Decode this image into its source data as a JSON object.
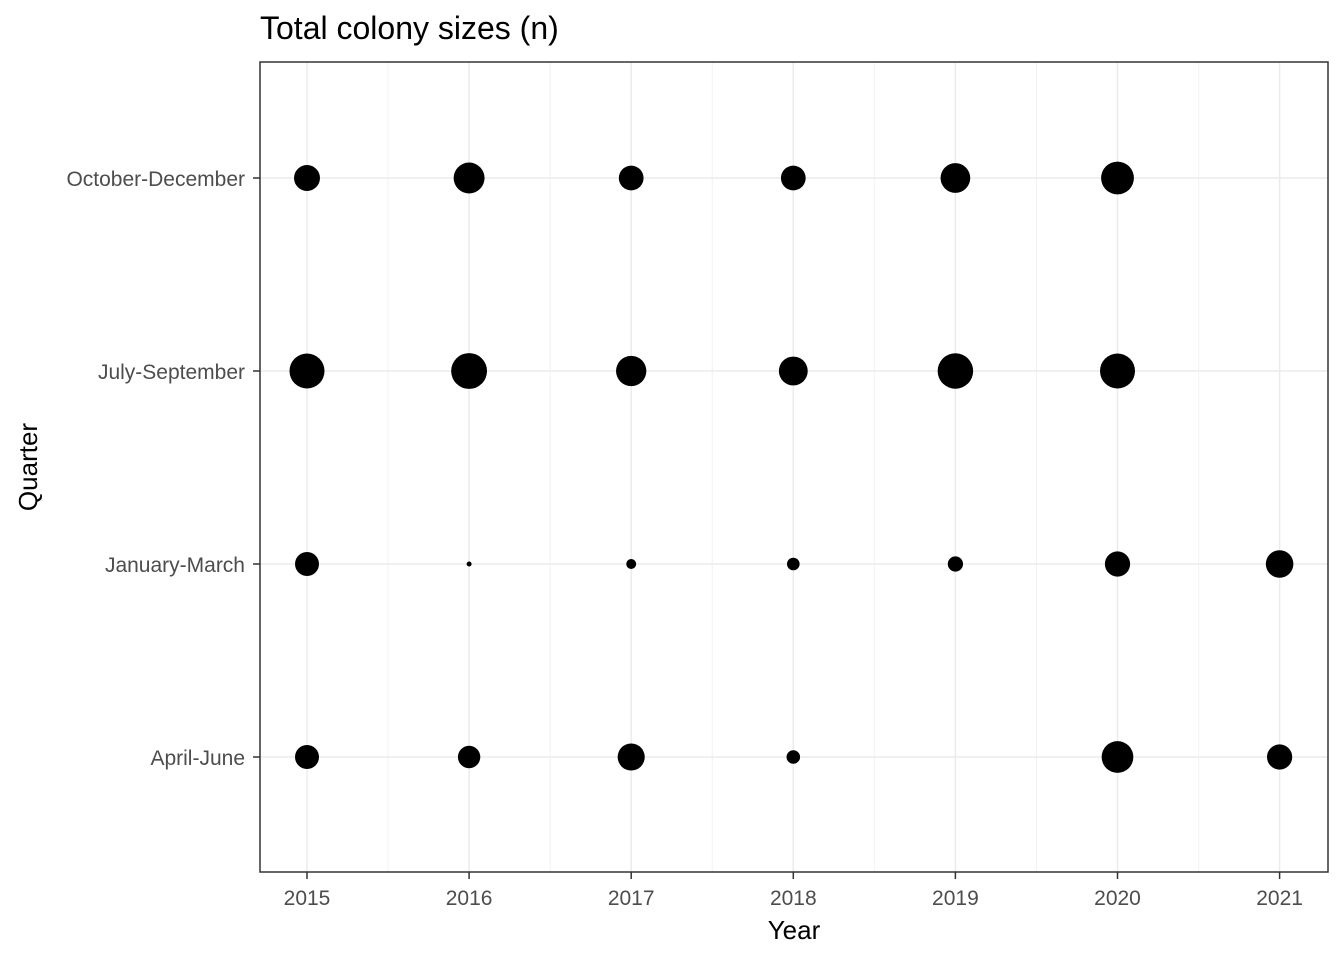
{
  "chart_data": {
    "type": "scatter",
    "title": "Total colony sizes (n)",
    "xlabel": "Year",
    "ylabel": "Quarter",
    "x_categories": [
      "2015",
      "2016",
      "2017",
      "2018",
      "2019",
      "2020",
      "2021"
    ],
    "y_categories": [
      "April-June",
      "January-March",
      "July-September",
      "October-December"
    ],
    "size_legend": "none",
    "grid": true,
    "point_color": "#000000",
    "points": [
      {
        "x": "2015",
        "y": "October-December",
        "size": 0.55
      },
      {
        "x": "2016",
        "y": "October-December",
        "size": 0.78
      },
      {
        "x": "2017",
        "y": "October-December",
        "size": 0.5
      },
      {
        "x": "2018",
        "y": "October-December",
        "size": 0.5
      },
      {
        "x": "2019",
        "y": "October-December",
        "size": 0.72
      },
      {
        "x": "2020",
        "y": "October-December",
        "size": 0.88
      },
      {
        "x": "2015",
        "y": "July-September",
        "size": 1.0
      },
      {
        "x": "2016",
        "y": "July-September",
        "size": 1.05
      },
      {
        "x": "2017",
        "y": "July-September",
        "size": 0.75
      },
      {
        "x": "2018",
        "y": "July-September",
        "size": 0.68
      },
      {
        "x": "2019",
        "y": "July-September",
        "size": 1.03
      },
      {
        "x": "2020",
        "y": "July-September",
        "size": 1.0
      },
      {
        "x": "2015",
        "y": "January-March",
        "size": 0.47
      },
      {
        "x": "2016",
        "y": "January-March",
        "size": 0.02
      },
      {
        "x": "2017",
        "y": "January-March",
        "size": 0.08
      },
      {
        "x": "2018",
        "y": "January-March",
        "size": 0.13
      },
      {
        "x": "2019",
        "y": "January-March",
        "size": 0.19
      },
      {
        "x": "2020",
        "y": "January-March",
        "size": 0.52
      },
      {
        "x": "2021",
        "y": "January-March",
        "size": 0.62
      },
      {
        "x": "2015",
        "y": "April-June",
        "size": 0.47
      },
      {
        "x": "2016",
        "y": "April-June",
        "size": 0.41
      },
      {
        "x": "2017",
        "y": "April-June",
        "size": 0.6
      },
      {
        "x": "2018",
        "y": "April-June",
        "size": 0.15
      },
      {
        "x": "2020",
        "y": "April-June",
        "size": 0.82
      },
      {
        "x": "2021",
        "y": "April-June",
        "size": 0.52
      }
    ]
  }
}
